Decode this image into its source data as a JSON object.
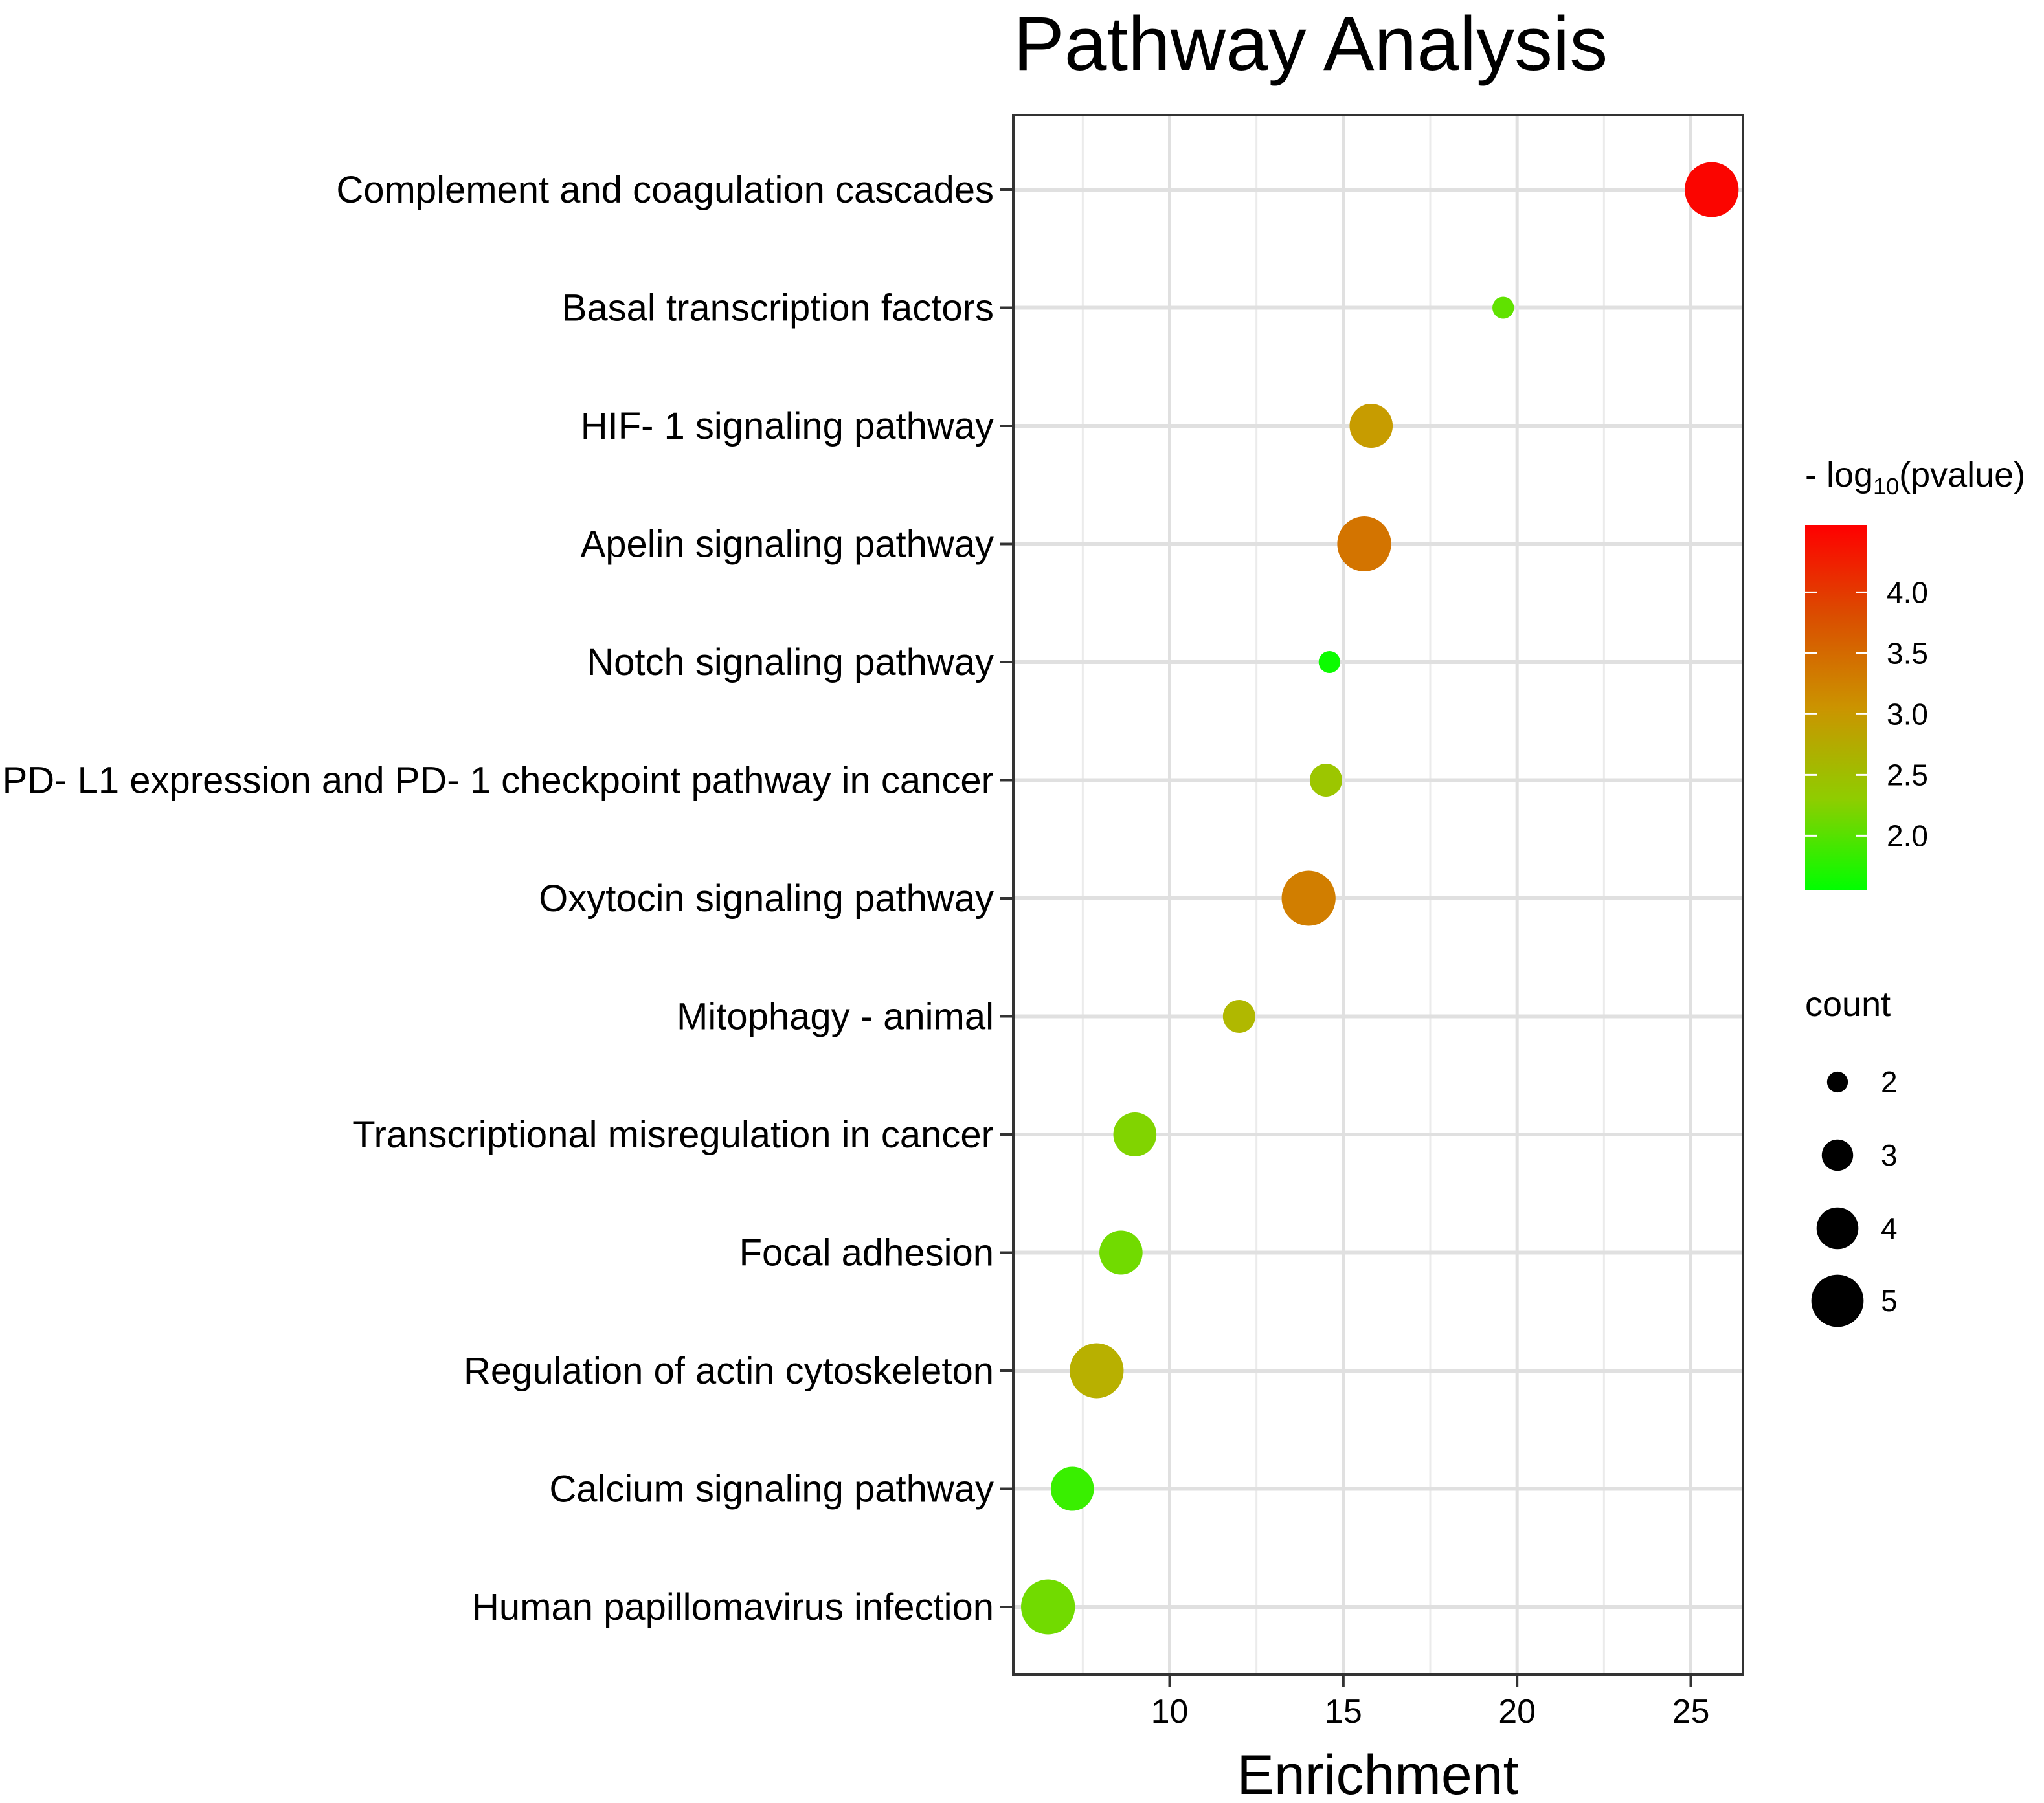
{
  "chart_data": {
    "type": "scatter",
    "title": "Pathway Analysis",
    "xlabel": "Enrichment",
    "ylabel": "",
    "xlim": [
      5.5,
      26.5
    ],
    "x_ticks": [
      10,
      15,
      20,
      25
    ],
    "grid": true,
    "categories": [
      "Complement and coagulation cascades",
      "Basal transcription factors",
      "HIF- 1 signaling pathway",
      "Apelin signaling pathway",
      "Notch signaling pathway",
      "PD- L1 expression and PD- 1 checkpoint pathway in cancer",
      "Oxytocin signaling pathway",
      "Mitophagy -  animal",
      "Transcriptional misregulation in cancer",
      "Focal adhesion",
      "Regulation of actin cytoskeleton",
      "Calcium signaling pathway",
      "Human papillomavirus infection"
    ],
    "points": [
      {
        "term": "Complement and coagulation cascades",
        "enrichment": 25.6,
        "neg_log10_p": 4.5,
        "count": 5
      },
      {
        "term": "Basal transcription factors",
        "enrichment": 19.6,
        "neg_log10_p": 2.0,
        "count": 2
      },
      {
        "term": "HIF- 1 signaling pathway",
        "enrichment": 15.8,
        "neg_log10_p": 2.95,
        "count": 4
      },
      {
        "term": "Apelin signaling pathway",
        "enrichment": 15.6,
        "neg_log10_p": 3.4,
        "count": 5
      },
      {
        "term": "Notch signaling pathway",
        "enrichment": 14.6,
        "neg_log10_p": 1.6,
        "count": 2
      },
      {
        "term": "PD- L1 expression and PD- 1 checkpoint pathway in cancer",
        "enrichment": 14.5,
        "neg_log10_p": 2.4,
        "count": 3
      },
      {
        "term": "Oxytocin signaling pathway",
        "enrichment": 14.0,
        "neg_log10_p": 3.3,
        "count": 5
      },
      {
        "term": "Mitophagy -  animal",
        "enrichment": 12.0,
        "neg_log10_p": 2.6,
        "count": 3
      },
      {
        "term": "Transcriptional misregulation in cancer",
        "enrichment": 9.0,
        "neg_log10_p": 2.2,
        "count": 4
      },
      {
        "term": "Focal adhesion",
        "enrichment": 8.6,
        "neg_log10_p": 2.1,
        "count": 4
      },
      {
        "term": "Regulation of actin cytoskeleton",
        "enrichment": 7.9,
        "neg_log10_p": 2.7,
        "count": 5
      },
      {
        "term": "Calcium signaling pathway",
        "enrichment": 7.2,
        "neg_log10_p": 1.8,
        "count": 4
      },
      {
        "term": "Human papillomavirus infection",
        "enrichment": 6.5,
        "neg_log10_p": 2.1,
        "count": 5
      }
    ],
    "color_legend": {
      "title_prefix": "- log",
      "title_subscript": "10",
      "title_suffix": "(pvalue)",
      "range": [
        1.55,
        4.55
      ],
      "ticks": [
        4.0,
        3.5,
        3.0,
        2.5,
        2.0
      ],
      "tick_labels": [
        "4.0",
        "3.5",
        "3.0",
        "2.5",
        "2.0"
      ],
      "low_color": "#00ff00",
      "high_color": "#ff0000"
    },
    "size_legend": {
      "title": "count",
      "values": [
        2,
        3,
        4,
        5
      ],
      "labels": [
        "2",
        "3",
        "4",
        "5"
      ]
    }
  }
}
